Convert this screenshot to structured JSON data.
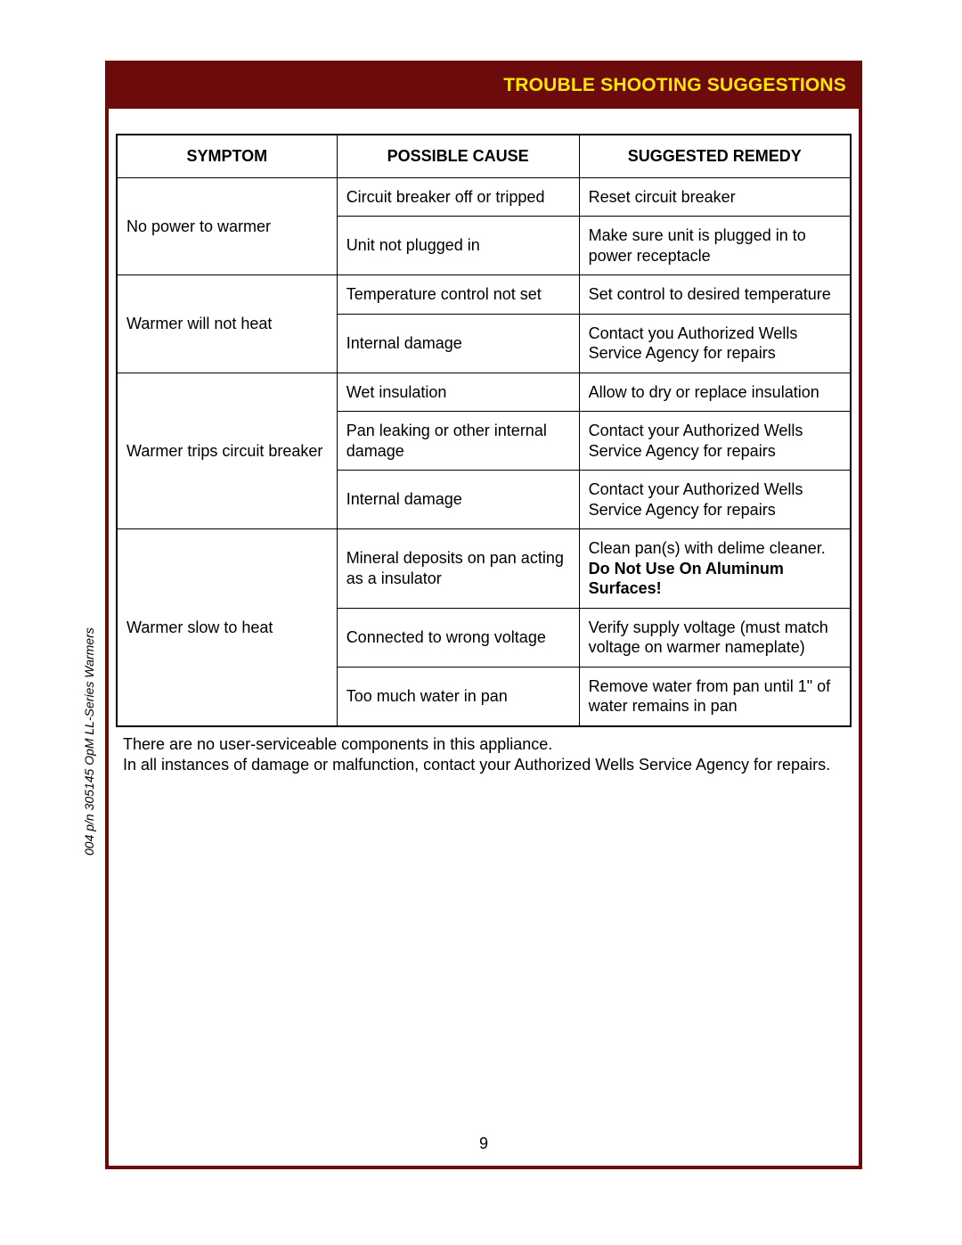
{
  "colors": {
    "frame_border": "#6b0b0b",
    "title_text": "#ffe600",
    "table_border": "#000000",
    "page_background": "#ffffff"
  },
  "typography": {
    "base_font": "Arial",
    "title_fontsize_pt": 16,
    "cell_fontsize_pt": 13
  },
  "title": "TROUBLE SHOOTING SUGGESTIONS",
  "table": {
    "headers": [
      "SYMPTOM",
      "POSSIBLE CAUSE",
      "SUGGESTED REMEDY"
    ],
    "rows": [
      {
        "symptom": "No power to warmer",
        "cause": "Circuit breaker off or tripped",
        "remedy": "Reset circuit breaker",
        "symptom_rowspan": 2
      },
      {
        "cause": "Unit not plugged in",
        "remedy": "Make sure unit is plugged in to power receptacle"
      },
      {
        "symptom": "Warmer will not heat",
        "cause": "Temperature control not set",
        "remedy": "Set control to desired temperature",
        "symptom_rowspan": 2
      },
      {
        "cause": "Internal damage",
        "remedy": "Contact you Authorized Wells Service Agency for repairs"
      },
      {
        "symptom": "Warmer trips circuit breaker",
        "cause": "Wet insulation",
        "remedy": "Allow to dry or replace insulation",
        "symptom_rowspan": 3
      },
      {
        "cause": "Pan leaking or other internal damage",
        "remedy": "Contact your Authorized Wells Service Agency for repairs"
      },
      {
        "cause": "Internal damage",
        "remedy": "Contact your Authorized Wells Service Agency for repairs"
      },
      {
        "symptom": "Warmer slow to heat",
        "cause": "Mineral deposits on pan acting as a insulator",
        "remedy_pre": "Clean pan(s) with delime cleaner.  ",
        "remedy_bold": "Do Not Use On Aluminum Surfaces!",
        "symptom_rowspan": 3
      },
      {
        "cause": "Connected to wrong voltage",
        "remedy": "Verify supply voltage (must match voltage on warmer nameplate)"
      },
      {
        "cause": "Too much water in pan",
        "remedy": "Remove water from pan until 1\" of water remains in pan"
      }
    ]
  },
  "notes_line1": "There are no user-serviceable components in this appliance.",
  "notes_line2": "In all instances of damage or malfunction, contact your Authorized Wells Service Agency for repairs.",
  "side_label": "004  p/n 305145 OpM LL-Series Warmers",
  "page_number": "9"
}
